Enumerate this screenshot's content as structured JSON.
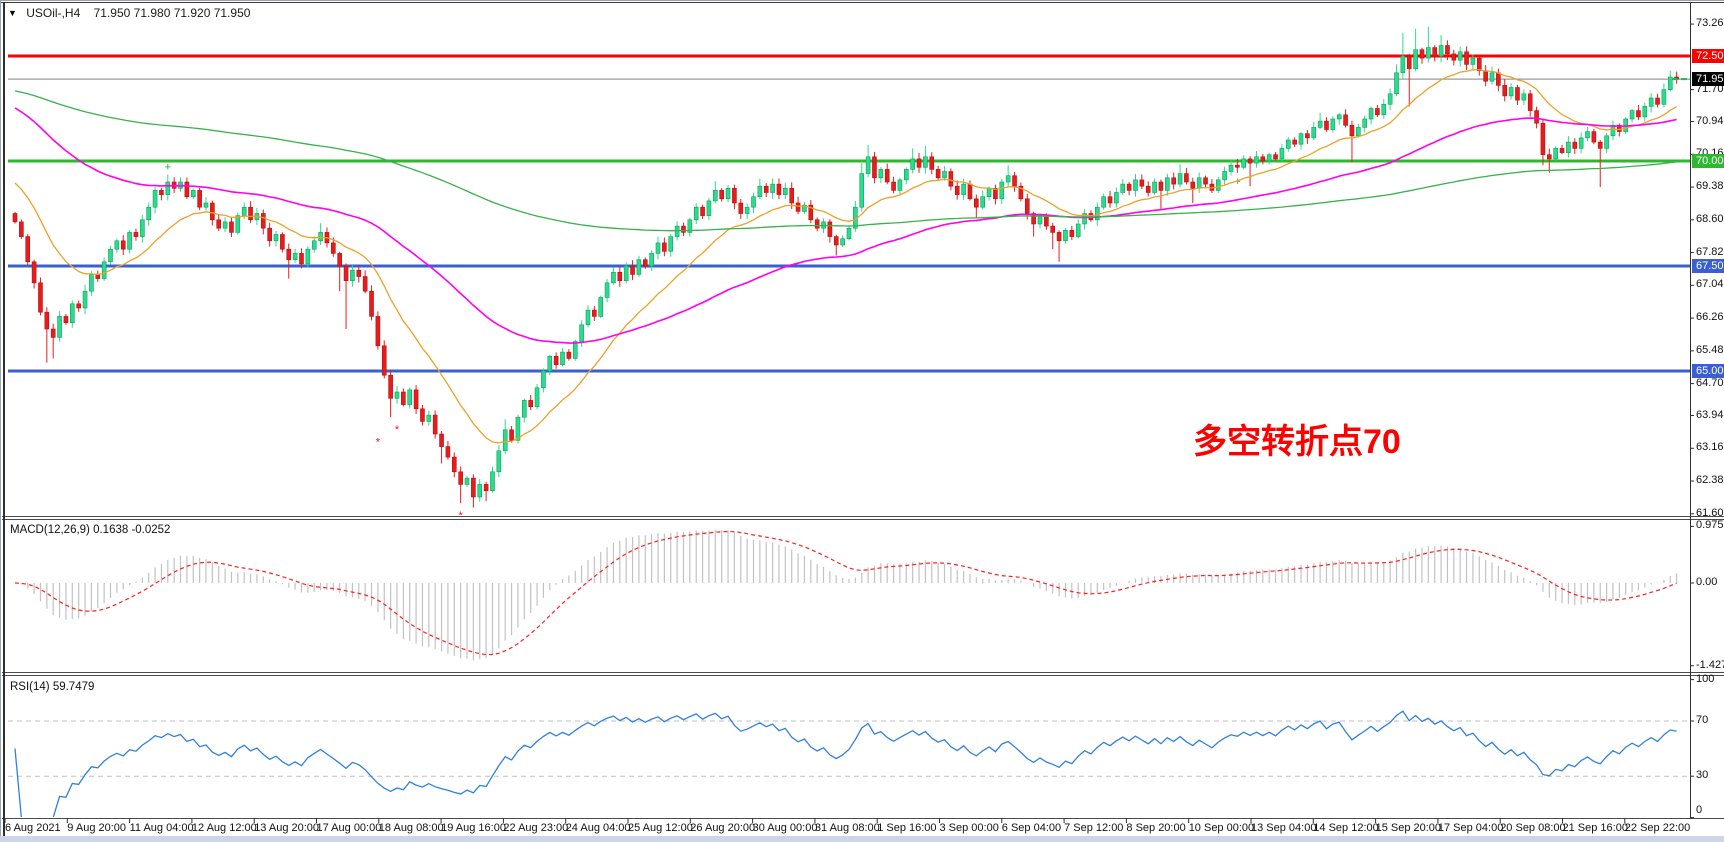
{
  "header": {
    "symbol": "USOil-,H4",
    "ohlc_text": "71.950 71.980 71.920 71.950"
  },
  "annotation": {
    "text": "多空转折点70",
    "color": "#ff0000"
  },
  "indicator_labels": {
    "macd": "MACD(12,26,9) 0.1638 -0.0252",
    "rsi": "RSI(14) 59.7479"
  },
  "chart_data": {
    "type": "candlestick",
    "symbol": "USOil",
    "timeframe": "H4",
    "last_quote": {
      "open": 71.95,
      "high": 71.98,
      "low": 71.92,
      "close": 71.95
    },
    "price_axis_ticks": [
      "73.260",
      "71.700",
      "70.940",
      "70.160",
      "69.380",
      "68.600",
      "67.820",
      "67.040",
      "66.260",
      "65.480",
      "64.700",
      "63.940",
      "63.160",
      "62.380",
      "61.600"
    ],
    "price_badges": [
      {
        "label": "72.500",
        "price": 72.5,
        "color": "#fe0000"
      },
      {
        "label": "71.950",
        "price": 71.95,
        "color": "#000000"
      },
      {
        "label": "70.000",
        "price": 70.0,
        "color": "#2eb82e"
      },
      {
        "label": "67.500",
        "price": 67.5,
        "color": "#3a5fd0"
      },
      {
        "label": "65.000",
        "price": 65.0,
        "color": "#3a5fd0"
      }
    ],
    "hlines": [
      {
        "price": 72.5,
        "color": "#fe0000",
        "width": 3
      },
      {
        "price": 70.0,
        "color": "#2eb82e",
        "width": 3
      },
      {
        "price": 67.5,
        "color": "#3a5fd0",
        "width": 3
      },
      {
        "price": 65.0,
        "color": "#3a5fd0",
        "width": 3
      },
      {
        "price": 71.95,
        "color": "#808080",
        "width": 1
      }
    ],
    "time_labels": [
      "6 Aug 2021",
      "9 Aug 20:00",
      "11 Aug 04:00",
      "12 Aug 12:00",
      "13 Aug 20:00",
      "17 Aug 00:00",
      "18 Aug 08:00",
      "19 Aug 16:00",
      "22 Aug 23:00",
      "24 Aug 04:00",
      "25 Aug 12:00",
      "26 Aug 20:00",
      "30 Aug 00:00",
      "31 Aug 08:00",
      "1 Sep 16:00",
      "3 Sep 00:00",
      "6 Sep 04:00",
      "7 Sep 12:00",
      "8 Sep 20:00",
      "10 Sep 00:00",
      "13 Sep 04:00",
      "14 Sep 12:00",
      "15 Sep 20:00",
      "17 Sep 04:00",
      "20 Sep 08:00",
      "21 Sep 16:00",
      "22 Sep 22:00"
    ],
    "candles": {
      "first_open": 68.75,
      "closes": [
        68.55,
        68.2,
        67.6,
        67.1,
        66.4,
        66.0,
        65.8,
        66.3,
        66.15,
        66.6,
        66.5,
        66.9,
        67.3,
        67.2,
        67.6,
        67.9,
        68.1,
        67.9,
        68.3,
        68.2,
        68.6,
        68.9,
        69.3,
        69.2,
        69.5,
        69.35,
        69.5,
        69.15,
        69.3,
        68.9,
        69.0,
        68.6,
        68.4,
        68.55,
        68.3,
        68.7,
        68.9,
        68.6,
        68.75,
        68.4,
        68.1,
        68.25,
        67.9,
        67.65,
        67.8,
        67.55,
        67.9,
        68.1,
        68.3,
        68.05,
        67.8,
        67.5,
        67.15,
        67.4,
        67.25,
        66.9,
        66.3,
        65.6,
        64.9,
        64.35,
        64.5,
        64.2,
        64.55,
        64.1,
        63.8,
        63.95,
        63.5,
        63.2,
        62.95,
        62.6,
        62.3,
        62.45,
        62.0,
        62.3,
        62.15,
        62.6,
        63.1,
        63.6,
        63.35,
        63.9,
        64.3,
        64.15,
        64.6,
        65.0,
        65.35,
        65.15,
        65.45,
        65.3,
        65.7,
        66.1,
        66.45,
        66.3,
        66.75,
        67.1,
        67.35,
        67.15,
        67.5,
        67.3,
        67.65,
        67.5,
        67.8,
        68.05,
        67.85,
        68.2,
        68.45,
        68.3,
        68.6,
        68.9,
        68.7,
        69.05,
        69.3,
        69.1,
        69.35,
        69.0,
        68.75,
        68.9,
        69.15,
        69.4,
        69.25,
        69.45,
        69.2,
        69.35,
        69.0,
        68.8,
        68.95,
        68.6,
        68.4,
        68.55,
        68.2,
        68.0,
        68.15,
        68.4,
        68.9,
        69.7,
        70.1,
        69.6,
        69.8,
        69.5,
        69.3,
        69.55,
        69.8,
        70.05,
        69.85,
        70.1,
        69.8,
        69.6,
        69.75,
        69.4,
        69.2,
        69.45,
        69.1,
        68.9,
        69.15,
        69.35,
        69.1,
        69.5,
        69.65,
        69.4,
        69.1,
        68.75,
        68.5,
        68.7,
        68.45,
        68.3,
        68.1,
        68.35,
        68.2,
        68.5,
        68.75,
        68.6,
        68.9,
        69.15,
        69.0,
        69.25,
        69.45,
        69.3,
        69.55,
        69.4,
        69.25,
        69.5,
        69.3,
        69.6,
        69.45,
        69.7,
        69.5,
        69.35,
        69.6,
        69.45,
        69.3,
        69.55,
        69.75,
        69.9,
        69.85,
        70.05,
        69.95,
        70.1,
        70.0,
        70.15,
        70.05,
        70.3,
        70.5,
        70.4,
        70.65,
        70.55,
        70.8,
        70.95,
        70.75,
        71.0,
        71.1,
        70.85,
        70.6,
        70.8,
        71.0,
        71.25,
        71.1,
        71.35,
        71.6,
        72.1,
        72.5,
        72.2,
        72.65,
        72.45,
        72.7,
        72.5,
        72.75,
        72.55,
        72.4,
        72.6,
        72.3,
        72.45,
        72.15,
        71.9,
        72.1,
        71.8,
        71.55,
        71.75,
        71.45,
        71.6,
        71.2,
        70.9,
        70.15,
        70.05,
        70.3,
        70.2,
        70.45,
        70.3,
        70.55,
        70.7,
        70.45,
        70.3,
        70.6,
        70.85,
        70.7,
        71.0,
        71.2,
        71.05,
        71.3,
        71.5,
        71.35,
        71.7,
        72.0,
        71.95
      ],
      "wick_overrides": {
        "5": {
          "l": 65.2
        },
        "6": {
          "l": 65.3
        },
        "24": {
          "h": 69.68
        },
        "43": {
          "l": 67.2
        },
        "48": {
          "h": 68.52
        },
        "51": {
          "l": 66.9
        },
        "52": {
          "l": 66.0
        },
        "59": {
          "l": 63.9
        },
        "67": {
          "l": 62.8
        },
        "70": {
          "l": 61.85
        },
        "72": {
          "l": 61.75
        },
        "74": {
          "l": 61.9
        },
        "77": {
          "h": 63.85
        },
        "110": {
          "h": 69.52
        },
        "117": {
          "h": 69.58
        },
        "129": {
          "l": 67.75
        },
        "133": {
          "h": 69.95
        },
        "134": {
          "h": 70.38
        },
        "141": {
          "h": 70.3
        },
        "143": {
          "h": 70.36
        },
        "151": {
          "l": 68.65
        },
        "156": {
          "h": 69.9
        },
        "160": {
          "l": 68.2
        },
        "163": {
          "l": 67.9
        },
        "164": {
          "l": 67.6
        },
        "180": {
          "l": 68.85
        },
        "183": {
          "h": 69.92
        },
        "185": {
          "l": 69.0
        },
        "194": {
          "l": 69.4
        },
        "205": {
          "h": 71.15
        },
        "210": {
          "l": 69.97
        },
        "217": {
          "h": 72.3
        },
        "218": {
          "h": 73.05
        },
        "219": {
          "l": 71.3
        },
        "220": {
          "h": 73.15
        },
        "222": {
          "h": 73.2
        },
        "224": {
          "h": 73.0
        },
        "240": {
          "l": 69.9
        },
        "241": {
          "l": 69.72
        },
        "249": {
          "l": 69.38
        },
        "260": {
          "h": 72.15
        },
        "261": {
          "h": 72.05
        }
      },
      "bull_color": "#2bdc8c",
      "bull_stroke": "#0f9d5f",
      "bear_color": "#e91c1c",
      "bear_stroke": "#b01212"
    },
    "moving_averages": [
      {
        "name": "fast-ma-orange",
        "color": "#eda128",
        "period": 16,
        "seed": 69.6,
        "width": 1.3
      },
      {
        "name": "medium-ma-magenta",
        "color": "#ff00f0",
        "period": 64,
        "seed": 71.35,
        "width": 1.6
      },
      {
        "name": "slow-ma-green",
        "color": "#38b24a",
        "period": 210,
        "seed": 71.7,
        "width": 1.3
      }
    ],
    "macd": {
      "params": "12,26,9",
      "value": 0.1638,
      "signal_value": -0.0252,
      "axis_labels": [
        "0.9759",
        "0.00",
        "-1.427"
      ],
      "hist_color": "#c2c2c2",
      "signal_color": "#ff2020"
    },
    "rsi": {
      "period": 14,
      "value": 59.7479,
      "levels": [
        70,
        30
      ],
      "axis_labels": [
        "100",
        "70",
        "30",
        "0"
      ],
      "color": "#2f80e0",
      "level_color": "#c0c0c0"
    },
    "markers": [
      {
        "i": 24,
        "price": 69.85,
        "glyph": "+",
        "color": "#1faa34"
      },
      {
        "i": 57,
        "price": 63.3,
        "glyph": "*",
        "color": "#e81717"
      },
      {
        "i": 60,
        "price": 63.6,
        "glyph": "*",
        "color": "#e81717"
      },
      {
        "i": 70,
        "price": 61.55,
        "glyph": "*",
        "color": "#e81717"
      },
      {
        "i": 72,
        "price": 61.45,
        "glyph": "*",
        "color": "#e81717"
      },
      {
        "i": 192,
        "price": 69.5,
        "glyph": "+",
        "color": "#1faa34"
      }
    ],
    "end_dash_markers": {
      "price": 71.95,
      "color": "#00c853"
    }
  }
}
